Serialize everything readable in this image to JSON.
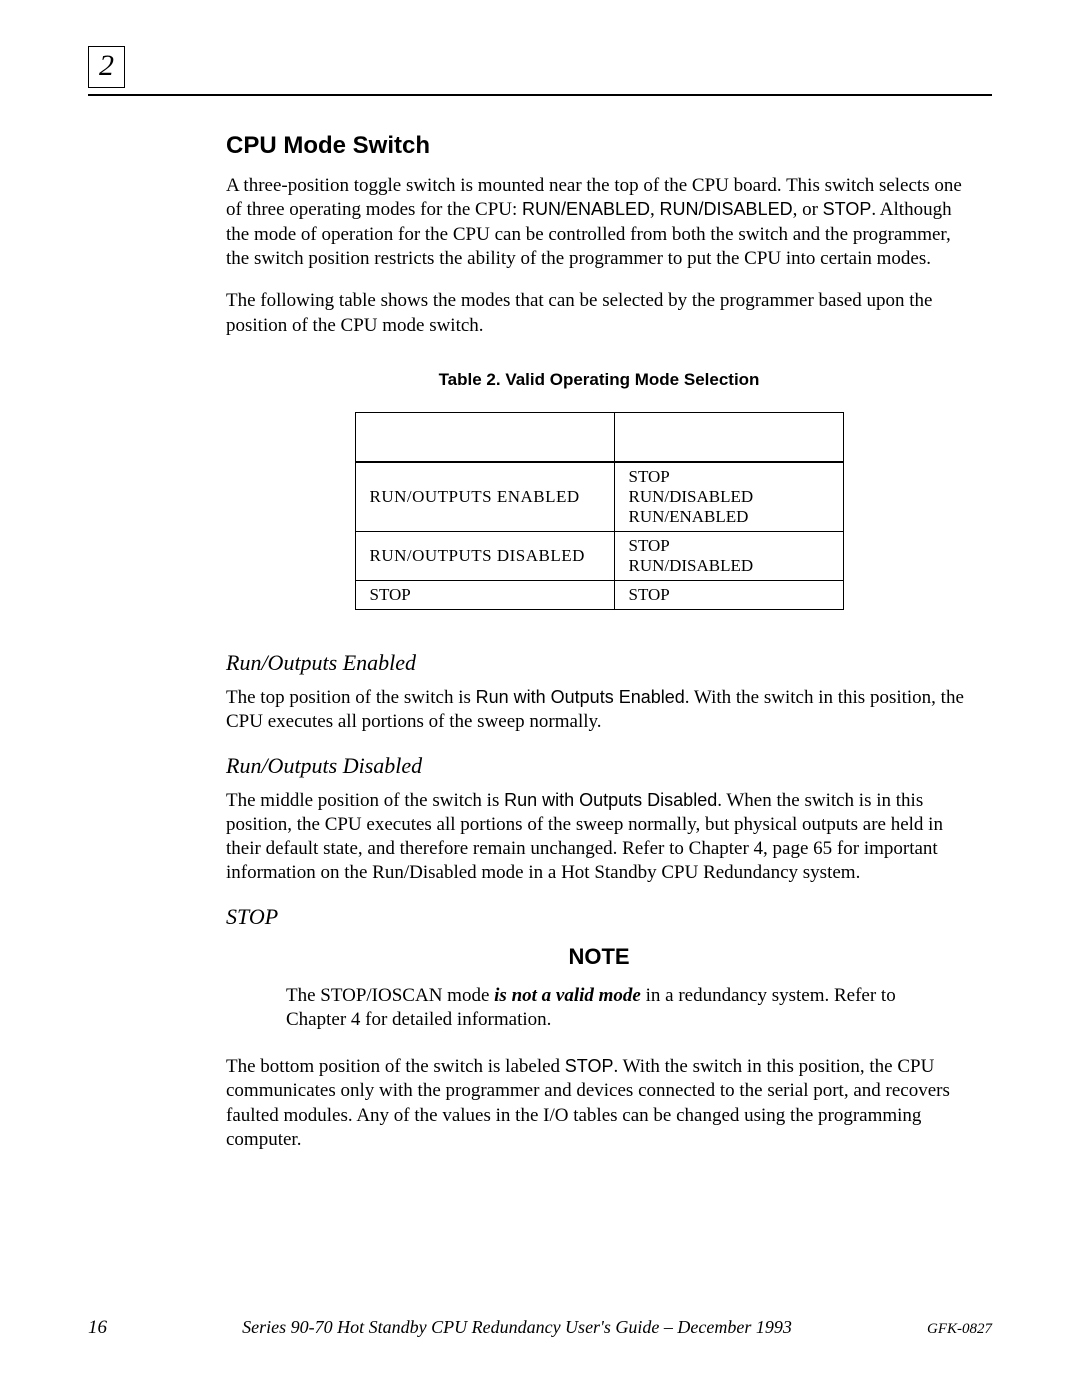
{
  "chapter_number": "2",
  "section_heading": "CPU Mode Switch",
  "para1_a": "A three-position toggle switch is mounted near the top of the CPU board.  This switch selects one of three operating modes for the CPU: ",
  "para1_mode1": "RUN/ENABLED",
  "para1_sep1": ", ",
  "para1_mode2": "RUN/DISABLED",
  "para1_sep2": ", or ",
  "para1_mode3": "STOP",
  "para1_b": ". Although the mode of operation for the CPU can be controlled from both the switch and the programmer, the switch position restricts the ability of the programmer to put the CPU into certain modes.",
  "para2": "The following table shows the modes that can be selected by the programmer based upon the position of the CPU mode switch.",
  "table_caption": "Table 2.  Valid Operating Mode Selection",
  "table": {
    "rows": [
      {
        "left": "RUN/OUTPUTS ENABLED",
        "right": "STOP\nRUN/DISABLED\nRUN/ENABLED"
      },
      {
        "left": "RUN/OUTPUTS DISABLED",
        "right": "STOP\nRUN/DISABLED"
      },
      {
        "left": "STOP",
        "right": "STOP"
      }
    ]
  },
  "sub1_heading": "Run/Outputs Enabled",
  "sub1_p_a": "The top position of the switch is ",
  "sub1_p_mode": "Run with Outputs Enabled",
  "sub1_p_b": ". With the switch in this position, the CPU executes all portions of the sweep normally.",
  "sub2_heading": "Run/Outputs Disabled",
  "sub2_p_a": "The middle position of the switch is ",
  "sub2_p_mode": "Run with Outputs Disabled",
  "sub2_p_b": ". When the switch is in this position, the CPU executes all portions of the sweep normally, but physical outputs are held in their default state, and therefore remain unchanged.  Refer to Chapter 4, page 65 for important information on the Run/Disabled mode in a Hot Standby CPU Redundancy system.",
  "sub3_heading": "STOP",
  "note_heading": "NOTE",
  "note_body_a": "The STOP/IOSCAN mode ",
  "note_body_em": "is not a valid mode",
  "note_body_b": " in a redundancy system. Refer to Chapter 4 for detailed information.",
  "sub3_p_a": "The bottom position of the switch is labeled ",
  "sub3_p_mode": "STOP",
  "sub3_p_b": ". With the switch in this position, the CPU communicates only with the programmer and devices connected to the serial port, and recovers faulted modules.   Any of the values in the I/O tables can be changed using the programming computer.",
  "footer": {
    "page_number": "16",
    "title": "Series 90-70 Hot Standby CPU Redundancy User's Guide – December 1993",
    "doc_code": "GFK-0827"
  }
}
